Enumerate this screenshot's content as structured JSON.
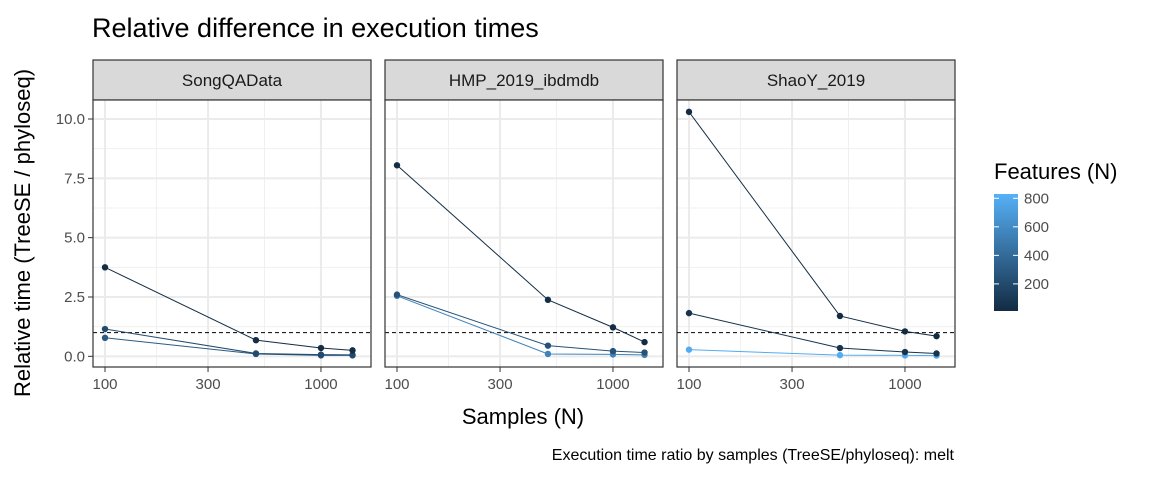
{
  "chart_data": {
    "type": "line",
    "title": "Relative difference in execution times",
    "xlabel": "Samples (N)",
    "ylabel": "Relative time (TreeSE / phyloseq)",
    "caption": "Execution time ratio by samples (TreeSE/phyloseq):  melt",
    "x_scale": "log10",
    "xlim": [
      100,
      1500
    ],
    "ylim": [
      -0.45,
      10.8
    ],
    "x_ticks": [
      100,
      300,
      1000
    ],
    "x_tick_labels": [
      "100",
      "300",
      "1000"
    ],
    "y_ticks": [
      0,
      2.5,
      5,
      7.5,
      10
    ],
    "y_tick_labels": [
      "0.0",
      "2.5",
      "5.0",
      "7.5",
      "10.0"
    ],
    "reference_line": 1,
    "grid": true,
    "legend": {
      "title": "Features (N)",
      "position": "right",
      "type": "colorbar",
      "color_low": "#132b43",
      "color_high": "#56b1f7",
      "range": [
        10,
        830
      ],
      "breaks": [
        200,
        400,
        600,
        800
      ],
      "break_labels": [
        "200",
        "400",
        "600",
        "800"
      ]
    },
    "panels": [
      {
        "name": "SongQAData",
        "series": [
          {
            "features": 20,
            "x": [
              100,
              500,
              1000,
              1400
            ],
            "y": [
              3.75,
              0.68,
              0.35,
              0.25
            ]
          },
          {
            "features": 200,
            "x": [
              100,
              500,
              1000,
              1400
            ],
            "y": [
              1.15,
              0.12,
              0.07,
              0.06
            ]
          },
          {
            "features": 300,
            "x": [
              100,
              500,
              1000,
              1400
            ],
            "y": [
              0.78,
              0.1,
              0.04,
              0.04
            ]
          }
        ]
      },
      {
        "name": "HMP_2019_ibdmdb",
        "series": [
          {
            "features": 20,
            "x": [
              100,
              500,
              1000,
              1400
            ],
            "y": [
              8.05,
              2.38,
              1.22,
              0.6
            ]
          },
          {
            "features": 250,
            "x": [
              100,
              500,
              1000,
              1400
            ],
            "y": [
              2.6,
              0.45,
              0.22,
              0.16
            ]
          },
          {
            "features": 550,
            "x": [
              100,
              500,
              1000,
              1400
            ],
            "y": [
              2.55,
              0.1,
              0.08,
              0.06
            ]
          }
        ]
      },
      {
        "name": "ShaoY_2019",
        "series": [
          {
            "features": 15,
            "x": [
              100,
              500,
              1000,
              1400
            ],
            "y": [
              10.3,
              1.7,
              1.05,
              0.85
            ]
          },
          {
            "features": 60,
            "x": [
              100,
              500,
              1000,
              1400
            ],
            "y": [
              1.82,
              0.35,
              0.18,
              0.12
            ]
          },
          {
            "features": 800,
            "x": [
              100,
              500,
              1000,
              1400
            ],
            "y": [
              0.28,
              0.05,
              0.04,
              0.03
            ]
          }
        ]
      }
    ]
  }
}
